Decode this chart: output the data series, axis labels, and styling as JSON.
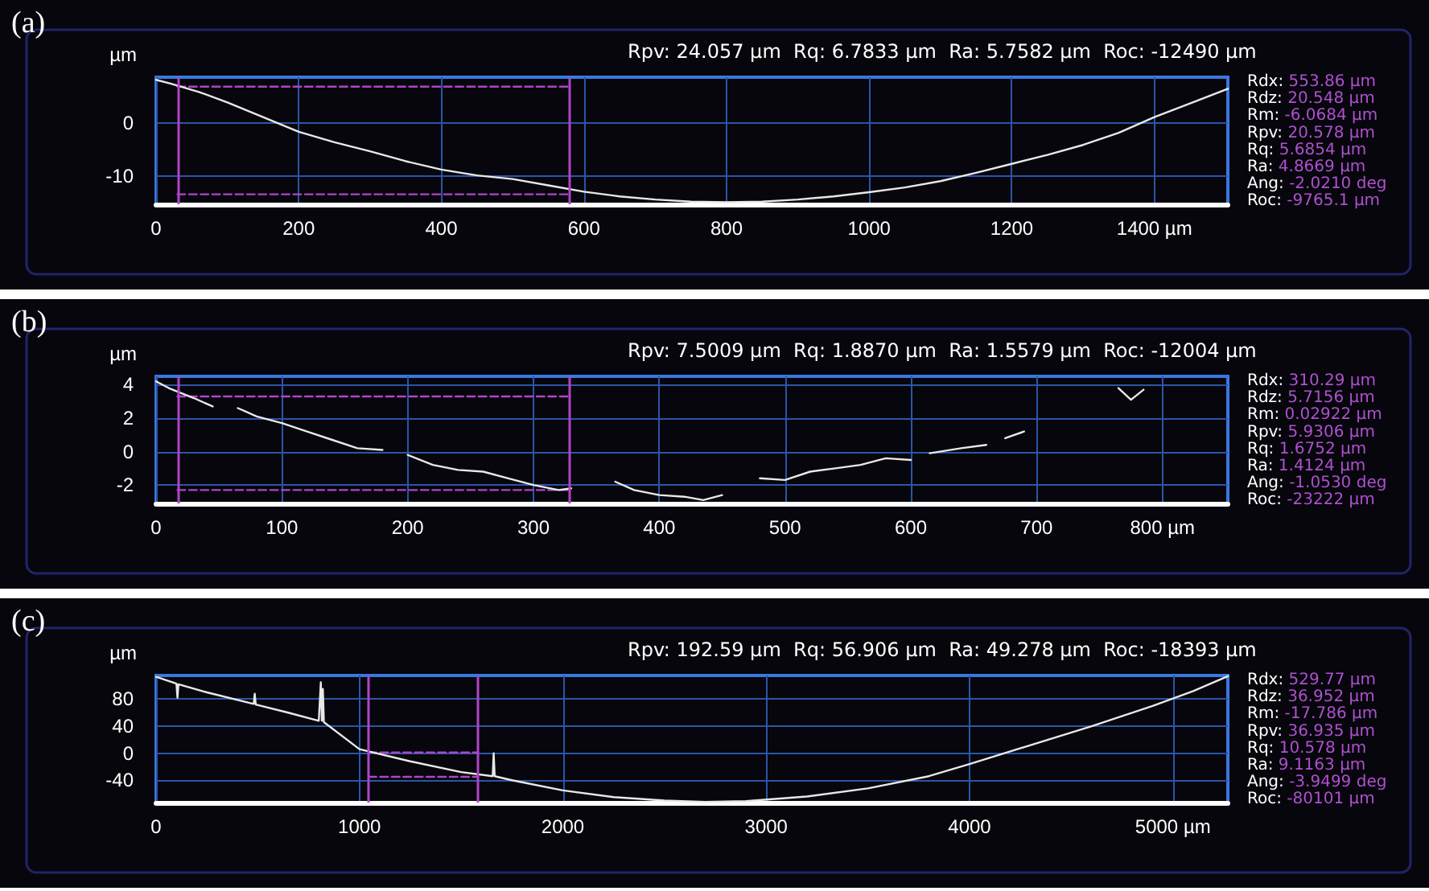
{
  "chart_data": [
    {
      "type": "line",
      "title": "(a)",
      "subtitle": "Rpv: 24.057 µm  Rq: 6.7833 µm  Ra: 5.7582 µm  Roc: -12490 µm",
      "ylabel": "µm",
      "annotations": [
        "Rdx: 553.86 µm",
        "Rdz: 20.548 µm",
        "Rm: -6.0684 µm",
        "Rpv: 20.578 µm",
        "Rq: 5.6854 µm",
        "Ra: 4.8669 µm",
        "Ang: -2.0210 deg",
        "Roc: -9765.1 µm"
      ],
      "xlim": [
        0,
        1503
      ],
      "ylim": [
        -15.4,
        8.8
      ],
      "xticks": [
        0,
        200,
        400,
        600,
        800,
        1000,
        1200,
        {
          "value": 1400,
          "label": "1400 µm"
        }
      ],
      "yticks": [
        -10,
        0
      ],
      "grid": true,
      "marker": "none",
      "series": [
        {
          "color": "#e8e8e8",
          "x": [
            0,
            20,
            40,
            60,
            100,
            150,
            200,
            250,
            300,
            350,
            400,
            450,
            500,
            550,
            600,
            650,
            700,
            750,
            800,
            850,
            900,
            950,
            1000,
            1050,
            1100,
            1150,
            1200,
            1250,
            1300,
            1350,
            1400,
            1450,
            1503
          ],
          "values": [
            8.3,
            7.6,
            6.8,
            6.0,
            4.0,
            1.2,
            -1.6,
            -3.6,
            -5.3,
            -7.2,
            -8.8,
            -9.9,
            -10.6,
            -11.8,
            -13.0,
            -13.9,
            -14.5,
            -14.9,
            -15.0,
            -14.9,
            -14.5,
            -13.9,
            -13.1,
            -12.2,
            -11.0,
            -9.4,
            -7.7,
            -6.0,
            -4.1,
            -1.8,
            1.2,
            3.8,
            6.6
          ]
        },
        {
          "color": "#b044c8",
          "line_style": "dashed",
          "x": [
            30,
            580
          ],
          "values": [
            7,
            7
          ]
        },
        {
          "color": "#b044c8",
          "line_style": "dashed",
          "x": [
            30,
            580
          ],
          "values": [
            -13.5,
            -13.5
          ]
        }
      ],
      "ref_lines": [
        {
          "axis": "x",
          "value": 30,
          "color": "#b044c8"
        },
        {
          "axis": "x",
          "value": 580,
          "color": "#b044c8"
        }
      ]
    },
    {
      "type": "line",
      "title": "(b)",
      "subtitle": "Rpv: 7.5009 µm  Rq: 1.8870 µm  Ra: 1.5579 µm  Roc: -12004 µm",
      "ylabel": "µm",
      "annotations": [
        "Rdx: 310.29 µm",
        "Rdz: 5.7156 µm",
        "Rm: 0.02922 µm",
        "Rpv: 5.9306 µm",
        "Rq: 1.6752 µm",
        "Ra: 1.4124 µm",
        "Ang: -1.0530 deg",
        "Roc: -23222 µm"
      ],
      "xlim": [
        0,
        852
      ],
      "ylim": [
        -3.1,
        4.5
      ],
      "xticks": [
        0,
        100,
        200,
        300,
        400,
        500,
        600,
        700,
        {
          "value": 800,
          "label": "800 µm"
        }
      ],
      "yticks": [
        -2,
        0,
        2,
        4
      ],
      "grid": true,
      "marker": "none",
      "series": [
        {
          "color": "#e8e8e8",
          "x": [
            0,
            10,
            20,
            30,
            45,
            55,
            65,
            80,
            100,
            120,
            140,
            160,
            180,
            190,
            200,
            220,
            240,
            260,
            280,
            300,
            320,
            330,
            350,
            365,
            380,
            400,
            420,
            435,
            450,
            465,
            480,
            500,
            520,
            540,
            560,
            580,
            600,
            608,
            615,
            640,
            660,
            668,
            675,
            690,
            720,
            765,
            775,
            785
          ],
          "values": [
            4.2,
            3.8,
            3.5,
            3.2,
            2.7,
            null,
            2.6,
            2.1,
            1.7,
            1.2,
            0.7,
            0.2,
            0.1,
            null,
            -0.2,
            -0.8,
            -1.1,
            -1.2,
            -1.6,
            -2.0,
            -2.3,
            -2.2,
            null,
            -1.8,
            -2.3,
            -2.6,
            -2.7,
            -2.9,
            -2.6,
            null,
            -1.6,
            -1.7,
            -1.2,
            -1.0,
            -0.8,
            -0.4,
            -0.5,
            null,
            -0.1,
            0.2,
            0.4,
            null,
            0.8,
            1.2,
            null,
            3.8,
            3.1,
            3.7
          ]
        },
        {
          "color": "#b044c8",
          "line_style": "dashed",
          "x": [
            17,
            329
          ],
          "values": [
            3.3,
            3.3
          ]
        },
        {
          "color": "#b044c8",
          "line_style": "dashed",
          "x": [
            17,
            329
          ],
          "values": [
            -2.3,
            -2.3
          ]
        }
      ],
      "ref_lines": [
        {
          "axis": "x",
          "value": 17,
          "color": "#b044c8"
        },
        {
          "axis": "x",
          "value": 329,
          "color": "#b044c8"
        }
      ]
    },
    {
      "type": "line",
      "title": "(c)",
      "subtitle": "Rpv: 192.59 µm  Rq: 56.906 µm  Ra: 49.278 µm  Roc: -18393 µm",
      "ylabel": "µm",
      "annotations": [
        "Rdx: 529.77 µm",
        "Rdz: 36.952 µm",
        "Rm: -17.786 µm",
        "Rpv: 36.935 µm",
        "Rq: 10.578 µm",
        "Ra: 9.1163 µm",
        "Ang: -3.9499 deg",
        "Roc: -80101 µm"
      ],
      "xlim": [
        0,
        5270
      ],
      "ylim": [
        -73,
        115
      ],
      "xticks": [
        0,
        1000,
        2000,
        3000,
        4000,
        {
          "value": 5000,
          "label": "5000 µm"
        }
      ],
      "yticks": [
        -40,
        0,
        40,
        80
      ],
      "grid": true,
      "marker": "none",
      "series": [
        {
          "color": "#e8e8e8",
          "x": [
            0,
            100,
            105,
            110,
            250,
            480,
            485,
            490,
            650,
            800,
            810,
            815,
            820,
            825,
            1000,
            1250,
            1500,
            1655,
            1660,
            1665,
            1750,
            2000,
            2250,
            2500,
            2700,
            2900,
            3200,
            3500,
            3800,
            4000,
            4300,
            4600,
            4900,
            5100,
            5270
          ],
          "values": [
            113,
            103,
            82,
            102,
            90,
            73,
            88,
            72,
            60,
            48,
            105,
            48,
            95,
            46,
            6,
            -12,
            -28,
            -34,
            0,
            -34,
            -40,
            -55,
            -65,
            -70,
            -72,
            -71,
            -64,
            -52,
            -34,
            -16,
            12,
            40,
            70,
            92,
            114
          ]
        },
        {
          "color": "#b044c8",
          "line_style": "dashed",
          "x": [
            1045,
            1583
          ],
          "values": [
            1,
            1
          ]
        },
        {
          "color": "#b044c8",
          "line_style": "dashed",
          "x": [
            1045,
            1583
          ],
          "values": [
            -35,
            -35
          ]
        }
      ],
      "ref_lines": [
        {
          "axis": "x",
          "value": 1045,
          "color": "#b044c8"
        },
        {
          "axis": "x",
          "value": 1583,
          "color": "#b044c8"
        }
      ]
    }
  ]
}
